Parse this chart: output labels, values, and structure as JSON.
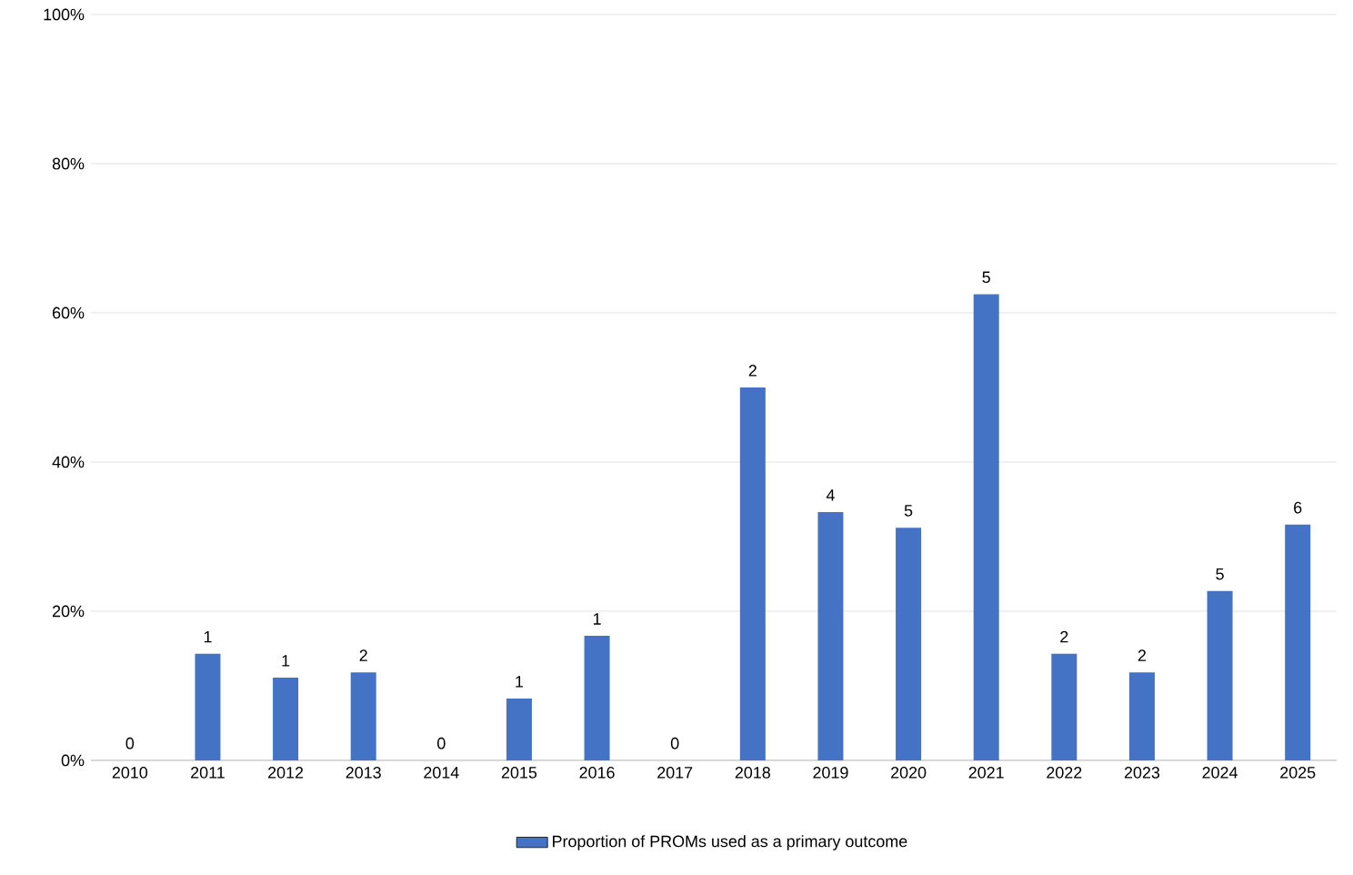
{
  "chart_data": {
    "type": "bar",
    "categories": [
      "2010",
      "2011",
      "2012",
      "2013",
      "2014",
      "2015",
      "2016",
      "2017",
      "2018",
      "2019",
      "2020",
      "2021",
      "2022",
      "2023",
      "2024",
      "2025"
    ],
    "series": [
      {
        "name": "Proportion of PROMs used as a primary outcome",
        "color": "#4472c4",
        "values": [
          0,
          14.3,
          11.1,
          11.8,
          0,
          8.3,
          16.7,
          0,
          50,
          33.3,
          31.2,
          62.5,
          14.3,
          11.8,
          22.7,
          31.6
        ]
      }
    ],
    "annotations": [
      {
        "text": "0",
        "x": "2010",
        "y": 0
      },
      {
        "text": "1",
        "x": "2011",
        "y": 14.3
      },
      {
        "text": "1",
        "x": "2012",
        "y": 11.1
      },
      {
        "text": "2",
        "x": "2013",
        "y": 11.8
      },
      {
        "text": "0",
        "x": "2014",
        "y": 0
      },
      {
        "text": "1",
        "x": "2015",
        "y": 8.3
      },
      {
        "text": "1",
        "x": "2016",
        "y": 16.7
      },
      {
        "text": "0",
        "x": "2017",
        "y": 0
      },
      {
        "text": "2",
        "x": "2018",
        "y": 50
      },
      {
        "text": "4",
        "x": "2019",
        "y": 33.3
      },
      {
        "text": "5",
        "x": "2020",
        "y": 31.2
      },
      {
        "text": "5",
        "x": "2021",
        "y": 62.5
      },
      {
        "text": "2",
        "x": "2022",
        "y": 14.3
      },
      {
        "text": "2",
        "x": "2023",
        "y": 11.8
      },
      {
        "text": "5",
        "x": "2024",
        "y": 22.7
      },
      {
        "text": "6",
        "x": "2025",
        "y": 31.6
      }
    ],
    "ylim": [
      0,
      100
    ],
    "yticks": [
      {
        "value": 0,
        "label": "0%"
      },
      {
        "value": 20,
        "label": "20%"
      },
      {
        "value": 40,
        "label": "40%"
      },
      {
        "value": 60,
        "label": "60%"
      },
      {
        "value": 80,
        "label": "80%"
      },
      {
        "value": 100,
        "label": "100%"
      }
    ],
    "grid": "y",
    "legend": "bottom"
  }
}
